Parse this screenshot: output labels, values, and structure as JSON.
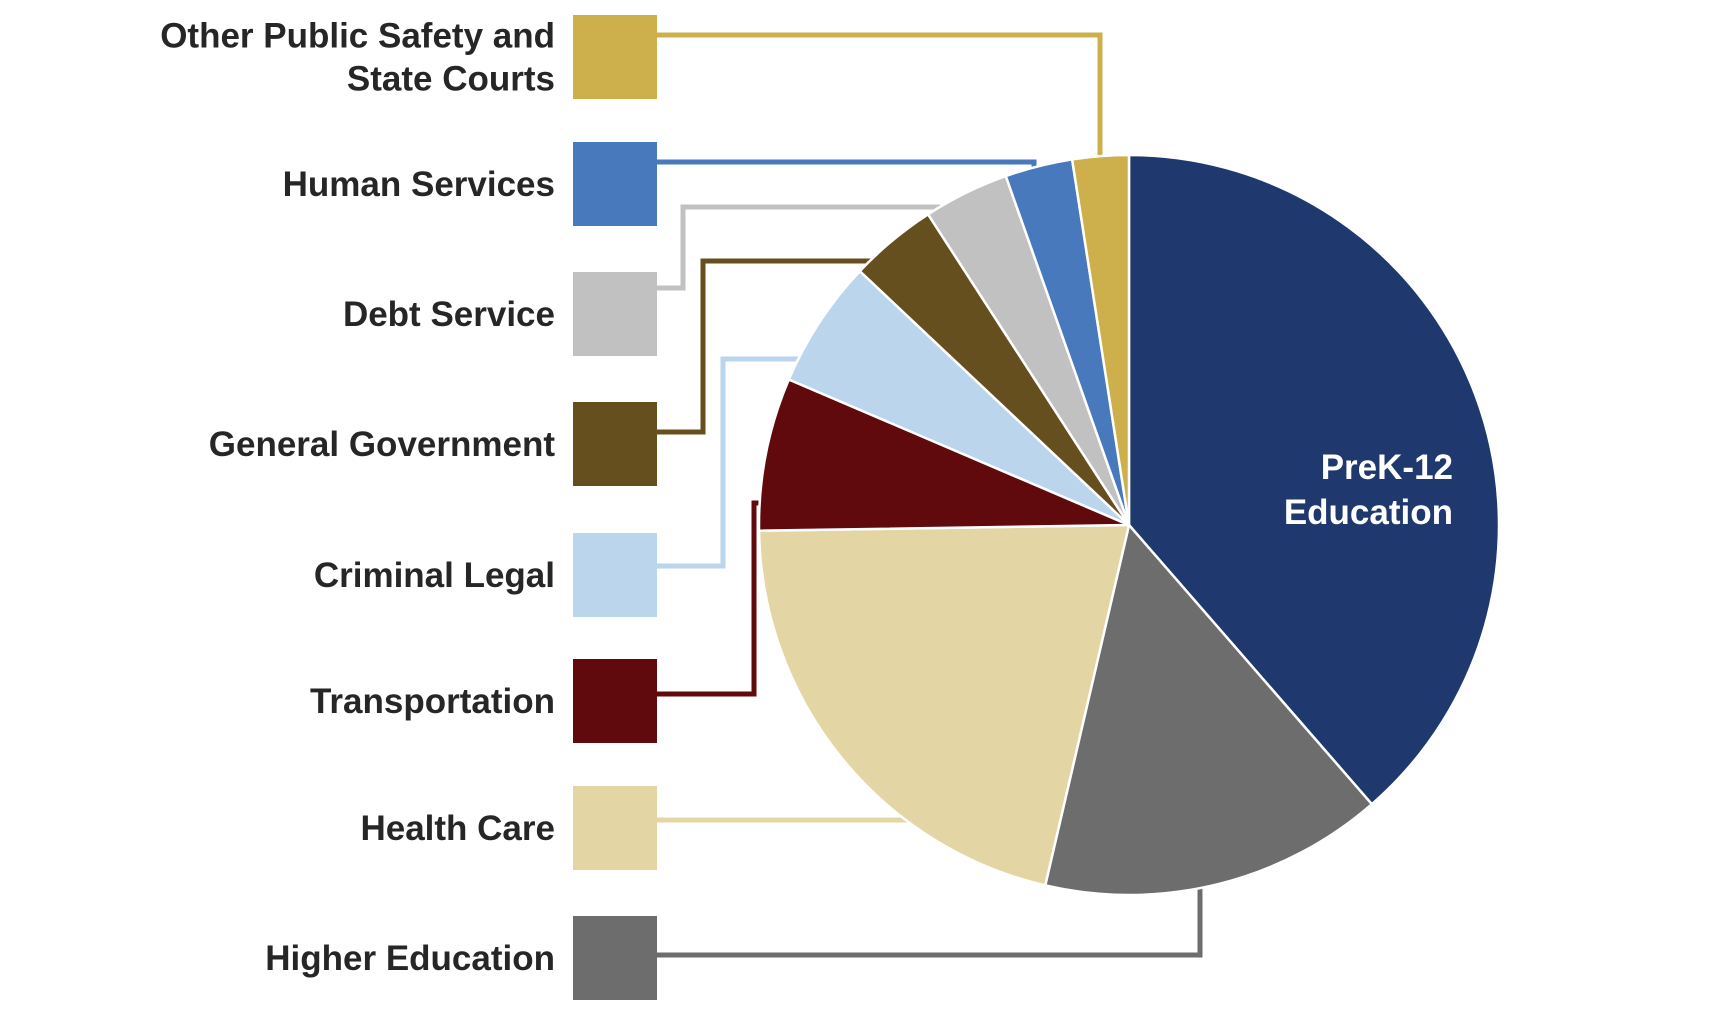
{
  "chart_data": {
    "type": "pie",
    "title": "",
    "slices": [
      {
        "label": "PreK-12 Education",
        "value": 39.3,
        "color": "#1F386D",
        "inside_label": [
          "PreK-12",
          "Education"
        ]
      },
      {
        "label": "Higher Education",
        "value": 15.3,
        "color": "#6D6D6D"
      },
      {
        "label": "Health Care",
        "value": 21.5,
        "color": "#E4D6A4"
      },
      {
        "label": "Transportation",
        "value": 6.8,
        "color": "#600A0E"
      },
      {
        "label": "Criminal Legal",
        "value": 5.7,
        "color": "#BBD5EC"
      },
      {
        "label": "General Government",
        "value": 3.9,
        "color": "#654F1F"
      },
      {
        "label": "Debt Service",
        "value": 3.8,
        "color": "#C1C1C1"
      },
      {
        "label": "Human Services",
        "value": 3.0,
        "color": "#4779BC"
      },
      {
        "label": "Other Public Safety and State Courts",
        "value": 2.5,
        "color": "#CDB04B"
      }
    ],
    "legend": {
      "placement": "left",
      "order": [
        {
          "lines": [
            "Other Public Safety and",
            "State Courts"
          ],
          "slice": "Other Public Safety and State Courts"
        },
        {
          "lines": [
            "Human Services"
          ],
          "slice": "Human Services"
        },
        {
          "lines": [
            "Debt Service"
          ],
          "slice": "Debt Service"
        },
        {
          "lines": [
            "General Government"
          ],
          "slice": "General Government"
        },
        {
          "lines": [
            "Criminal Legal"
          ],
          "slice": "Criminal Legal"
        },
        {
          "lines": [
            "Transportation"
          ],
          "slice": "Transportation"
        },
        {
          "lines": [
            "Health Care"
          ],
          "slice": "Health Care"
        },
        {
          "lines": [
            "Higher Education"
          ],
          "slice": "Higher Education"
        }
      ]
    }
  }
}
